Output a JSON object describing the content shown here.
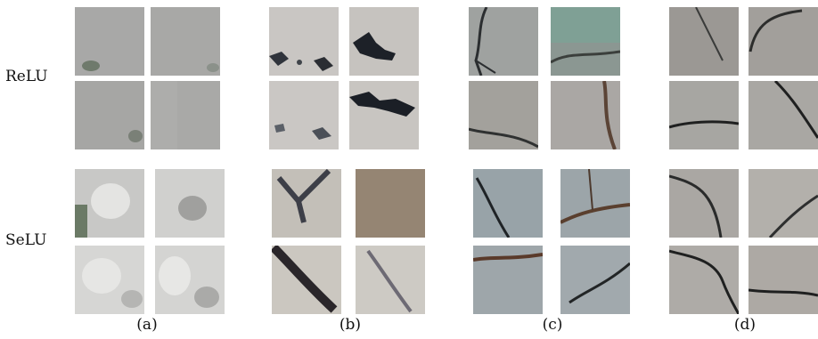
{
  "figure": {
    "row_labels": [
      "ReLU",
      "SeLU"
    ],
    "column_labels": [
      "(a)",
      "(b)",
      "(c)",
      "(d)"
    ]
  }
}
